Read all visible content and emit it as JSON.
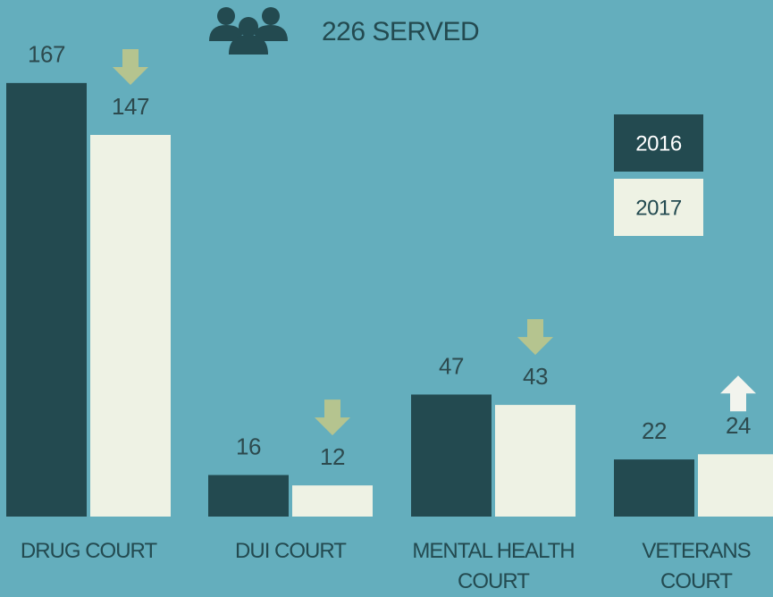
{
  "chart_data": {
    "type": "bar",
    "annotation": "226 SERVED",
    "categories": [
      "DRUG COURT",
      "DUI COURT",
      "MENTAL HEALTH COURT",
      "VETERANS COURT"
    ],
    "series": [
      {
        "name": "2016",
        "color": "#234a50",
        "values": [
          167,
          16,
          47,
          22
        ]
      },
      {
        "name": "2017",
        "color": "#eef2e4",
        "values": [
          147,
          12,
          43,
          24
        ]
      }
    ]
  }
}
